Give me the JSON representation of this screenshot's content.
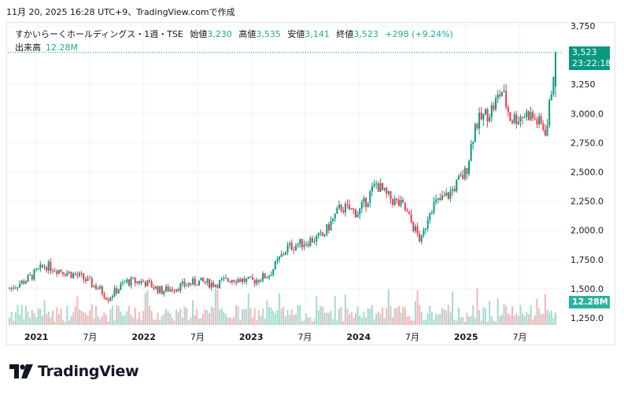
{
  "header": {
    "snapshot_text": "11月 20, 2025 16:28 UTC+9、TradingView.comで作成"
  },
  "legend": {
    "symbol": "すかいらーくホールディングス・1週・TSE",
    "open_label": "始値",
    "open": "3,230",
    "high_label": "高値",
    "high": "3,535",
    "low_label": "安値",
    "low": "3,141",
    "close_label": "終値",
    "close": "3,523",
    "change": "+298 (+9.24%)",
    "volume_label": "出来高",
    "volume": "12.28M"
  },
  "price_tag": {
    "price": "3,523",
    "countdown": "23:22:18"
  },
  "volume_tag": {
    "value": "12.28M"
  },
  "brand": {
    "name": "TradingView"
  },
  "colors": {
    "up": "#089981",
    "down": "#f23645",
    "vol_up": "#a4dccf",
    "vol_down": "#f7b4b9",
    "grid": "#f0f3fa"
  },
  "chart_data": {
    "type": "candlestick",
    "y_ticks": [
      "3,750",
      "3,250",
      "3,000.0",
      "2,750.0",
      "2,500.0",
      "2,250.0",
      "2,000.0",
      "1,750.0",
      "1,500.0",
      "1,250.0"
    ],
    "y_tick_values": [
      3750,
      3250,
      3000,
      2750,
      2500,
      2250,
      2000,
      1750,
      1500,
      1250
    ],
    "ylim": [
      1180,
      3800
    ],
    "x_ticks": [
      {
        "label": "2021",
        "date": "2021-01"
      },
      {
        "label": "7月",
        "date": "2021-07"
      },
      {
        "label": "2022",
        "date": "2022-01"
      },
      {
        "label": "7月",
        "date": "2022-07"
      },
      {
        "label": "2023",
        "date": "2023-01"
      },
      {
        "label": "7月",
        "date": "2023-07"
      },
      {
        "label": "2024",
        "date": "2024-01"
      },
      {
        "label": "7月",
        "date": "2024-07"
      },
      {
        "label": "2025",
        "date": "2025-01"
      },
      {
        "label": "7月",
        "date": "2025-07"
      }
    ],
    "x_range": [
      "2020-10",
      "2025-11"
    ],
    "last_close": 3523,
    "trend": [
      {
        "date": "2020-10",
        "close": 1500
      },
      {
        "date": "2020-12",
        "close": 1580
      },
      {
        "date": "2021-02",
        "close": 1700
      },
      {
        "date": "2021-04",
        "close": 1650
      },
      {
        "date": "2021-06",
        "close": 1600
      },
      {
        "date": "2021-08",
        "close": 1500
      },
      {
        "date": "2021-09",
        "close": 1420
      },
      {
        "date": "2021-11",
        "close": 1560
      },
      {
        "date": "2022-01",
        "close": 1560
      },
      {
        "date": "2022-03",
        "close": 1480
      },
      {
        "date": "2022-05",
        "close": 1520
      },
      {
        "date": "2022-07",
        "close": 1560
      },
      {
        "date": "2022-09",
        "close": 1540
      },
      {
        "date": "2022-11",
        "close": 1590
      },
      {
        "date": "2023-01",
        "close": 1560
      },
      {
        "date": "2023-03",
        "close": 1620
      },
      {
        "date": "2023-05",
        "close": 1850
      },
      {
        "date": "2023-07",
        "close": 1900
      },
      {
        "date": "2023-09",
        "close": 1950
      },
      {
        "date": "2023-11",
        "close": 2200
      },
      {
        "date": "2024-01",
        "close": 2150
      },
      {
        "date": "2024-03",
        "close": 2400
      },
      {
        "date": "2024-04",
        "close": 2300
      },
      {
        "date": "2024-06",
        "close": 2200
      },
      {
        "date": "2024-07",
        "close": 2050
      },
      {
        "date": "2024-08",
        "close": 1900
      },
      {
        "date": "2024-09",
        "close": 2200
      },
      {
        "date": "2024-11",
        "close": 2300
      },
      {
        "date": "2025-01",
        "close": 2500
      },
      {
        "date": "2025-02",
        "close": 2900
      },
      {
        "date": "2025-04",
        "close": 3050
      },
      {
        "date": "2025-05",
        "close": 3200
      },
      {
        "date": "2025-06",
        "close": 2950
      },
      {
        "date": "2025-08",
        "close": 3000
      },
      {
        "date": "2025-10",
        "close": 2850
      },
      {
        "date": "2025-11",
        "close": 3523
      }
    ]
  }
}
